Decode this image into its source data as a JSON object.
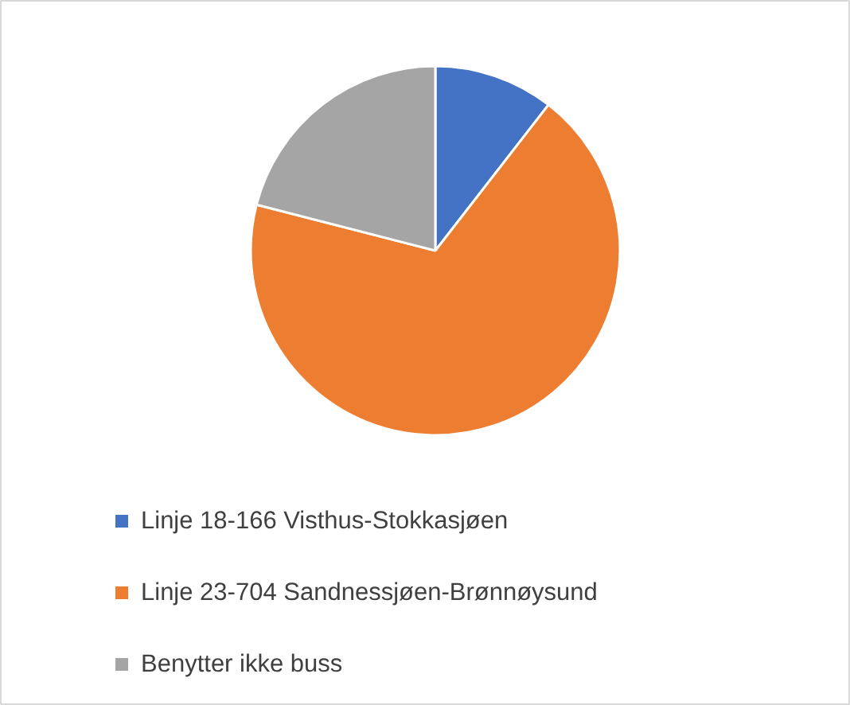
{
  "chart_data": {
    "type": "pie",
    "categories": [
      "Linje 18-166 Visthus-Stokkasjøen",
      "Linje 23-704 Sandnessjøen-Brønnøysund",
      "Benytter ikke buss"
    ],
    "values": [
      10.5,
      68.5,
      21
    ],
    "colors": [
      "#4472c4",
      "#ed7d31",
      "#a5a5a5"
    ],
    "legend": "bottom"
  }
}
